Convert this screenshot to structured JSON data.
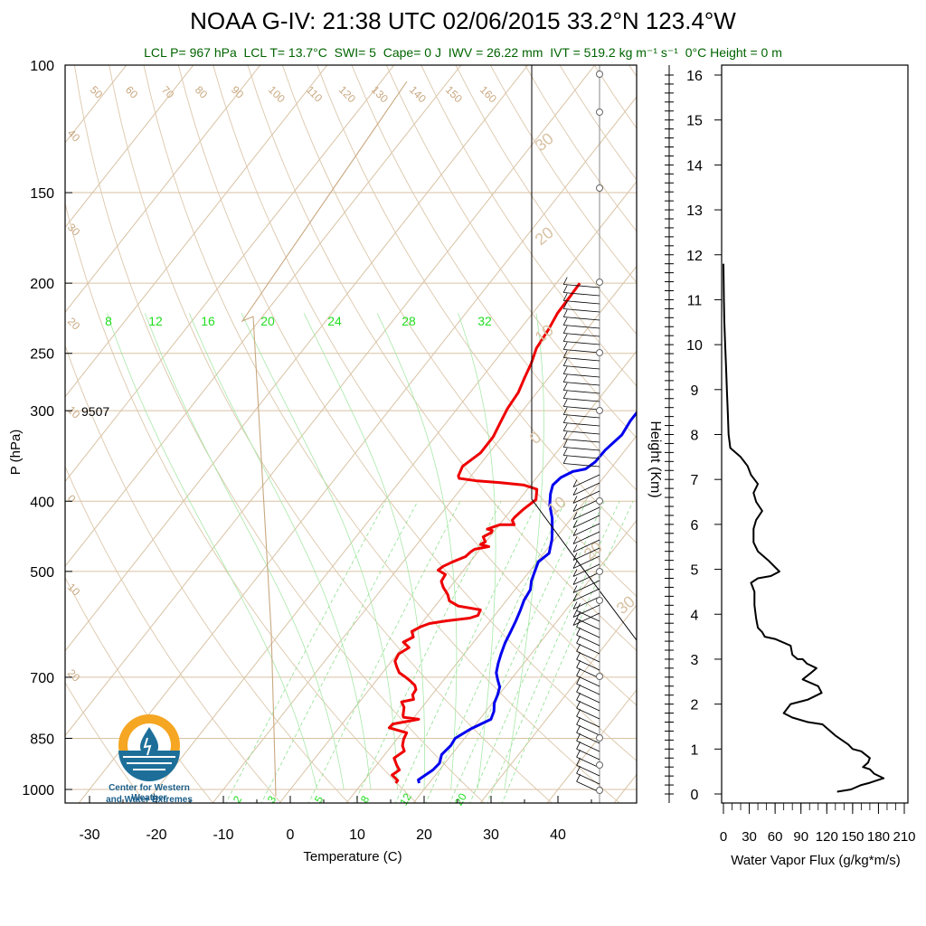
{
  "title": "NOAA G-IV: 21:38 UTC 02/06/2015  33.2°N 123.4°W",
  "subtitle": {
    "lcl_p": "LCL P= 967 hPa",
    "lcl_t": "LCL T= 13.7°C",
    "swi": "SWI= 5",
    "cape": "Cape= 0 J",
    "iwv": "IWV = 26.22 mm",
    "ivt": "IVT = 519.2 kg m⁻¹ s⁻¹",
    "zero_height": "0°C Height = 0 m"
  },
  "logo": {
    "line1": "Center for Western Weather",
    "line2": "and Water Extremes"
  },
  "chart_data": [
    {
      "type": "line",
      "name": "skewt-log-p",
      "xlabel": "Temperature (C)",
      "ylabel": "P (hPa)",
      "x_ticks": [
        -30,
        -20,
        -10,
        0,
        10,
        20,
        30,
        40
      ],
      "y_ticks": [
        100,
        150,
        200,
        250,
        300,
        400,
        500,
        700,
        850,
        1000
      ],
      "xlim": [
        -34,
        44
      ],
      "ylim": [
        1050,
        100
      ],
      "annotation": "9507",
      "mixing_ratio_labels": [
        "8",
        "12",
        "16",
        "20",
        "24",
        "28",
        "32"
      ],
      "mixing_ratio_low_labels": [
        "2",
        "3",
        "5",
        "8",
        "12",
        "20"
      ],
      "isotherm_labels_top": [
        "50",
        "60",
        "70",
        "80",
        "90",
        "100",
        "110",
        "120",
        "130",
        "140",
        "150",
        "160"
      ],
      "isotherm_labels_left": [
        "40",
        "30",
        "20",
        "10",
        "0",
        "10",
        "20"
      ],
      "wind_profile_labels": [
        "30",
        "20",
        "10",
        "0",
        "10",
        "20",
        "30"
      ],
      "series": [
        {
          "name": "temperature",
          "color": "#0000ee",
          "points": [
            [
              18.5,
              980
            ],
            [
              18,
              970
            ],
            [
              19,
              940
            ],
            [
              19.2,
              920
            ],
            [
              18.5,
              895
            ],
            [
              18.8,
              870
            ],
            [
              18.6,
              850
            ],
            [
              19.8,
              825
            ],
            [
              21.7,
              800
            ],
            [
              21.2,
              780
            ],
            [
              20.3,
              760
            ],
            [
              19.8,
              740
            ],
            [
              19.2,
              722
            ],
            [
              18,
              705
            ],
            [
              17,
              690
            ],
            [
              16.2,
              670
            ],
            [
              15.5,
              650
            ],
            [
              14.8,
              628
            ],
            [
              14.3,
              605
            ],
            [
              13.8,
              585
            ],
            [
              13.2,
              565
            ],
            [
              12.6,
              548
            ],
            [
              12.3,
              530
            ],
            [
              11.4,
              515
            ],
            [
              10.8,
              500
            ],
            [
              10.2,
              485
            ],
            [
              10.8,
              472
            ],
            [
              10.2,
              462
            ],
            [
              9.6,
              452
            ],
            [
              8.4,
              437
            ],
            [
              7.1,
              422
            ],
            [
              5.2,
              405
            ],
            [
              4,
              391
            ],
            [
              3.3,
              380
            ],
            [
              3.6,
              371
            ],
            [
              4.7,
              364
            ],
            [
              6.3,
              361
            ],
            [
              6.9,
              353
            ],
            [
              7,
              340
            ],
            [
              7.7,
              324
            ],
            [
              7.3,
              310
            ],
            [
              7.3,
              298
            ],
            [
              6.4,
              283
            ],
            [
              5.5,
              270
            ],
            [
              4.5,
              258
            ],
            [
              3.6,
              246
            ],
            [
              3.5,
              232
            ],
            [
              3.3,
              220
            ],
            [
              3.6,
              210
            ],
            [
              4,
              200
            ]
          ]
        },
        {
          "name": "dewpoint",
          "color": "#ee0000",
          "points": [
            [
              15,
              980
            ],
            [
              15,
              972
            ],
            [
              13.5,
              955
            ],
            [
              14,
              940
            ],
            [
              13,
              925
            ],
            [
              11.8,
              905
            ],
            [
              12.5,
              885
            ],
            [
              11.6,
              870
            ],
            [
              11,
              852
            ],
            [
              10.7,
              835
            ],
            [
              7.5,
              822
            ],
            [
              7.6,
              812
            ],
            [
              10.9,
              800
            ],
            [
              8.4,
              795
            ],
            [
              8.1,
              790
            ],
            [
              7.7,
              780
            ],
            [
              7.3,
              770
            ],
            [
              6.3,
              757
            ],
            [
              7.8,
              751
            ],
            [
              7.1,
              740
            ],
            [
              7,
              728
            ],
            [
              6.3,
              718
            ],
            [
              5.1,
              708
            ],
            [
              4,
              700
            ],
            [
              2.5,
              690
            ],
            [
              1.5,
              678
            ],
            [
              0.5,
              665
            ],
            [
              0.2,
              650
            ],
            [
              1,
              637
            ],
            [
              -0.5,
              626
            ],
            [
              0.4,
              616
            ],
            [
              -0.5,
              605
            ],
            [
              0.3,
              596
            ],
            [
              1.2,
              590
            ],
            [
              3.5,
              585
            ],
            [
              6.6,
              580
            ],
            [
              7.5,
              575
            ],
            [
              7.2,
              565
            ],
            [
              3.4,
              558
            ],
            [
              1.5,
              549
            ],
            [
              0.5,
              538
            ],
            [
              -1,
              526
            ],
            [
              -2,
              516
            ],
            [
              -2.2,
              505
            ],
            [
              -3.8,
              498
            ],
            [
              -3.5,
              492
            ],
            [
              -2.6,
              485
            ],
            [
              -1.3,
              477
            ],
            [
              -1.1,
              470
            ],
            [
              -0.8,
              466
            ],
            [
              1,
              462
            ],
            [
              -0.5,
              459
            ],
            [
              -0.1,
              455
            ],
            [
              -1,
              448
            ],
            [
              -0.3,
              442
            ],
            [
              -0.4,
              439
            ],
            [
              -1.3,
              437
            ],
            [
              0.1,
              431
            ],
            [
              2.2,
              431
            ],
            [
              1.4,
              425
            ],
            [
              1.4,
              421
            ],
            [
              1.6,
              415
            ],
            [
              1.8,
              410
            ],
            [
              2.5,
              398
            ],
            [
              1.4,
              385
            ],
            [
              -1,
              380
            ],
            [
              -5,
              377
            ],
            [
              -8.5,
              375
            ],
            [
              -11.5,
              372
            ],
            [
              -11.9,
              369
            ],
            [
              -12.4,
              358
            ],
            [
              -11.9,
              351
            ],
            [
              -11.3,
              343
            ],
            [
              -11.3,
              326
            ],
            [
              -11.9,
              312
            ],
            [
              -12.5,
              298
            ],
            [
              -12.8,
              283
            ],
            [
              -13.6,
              270
            ],
            [
              -14.3,
              258
            ],
            [
              -15.3,
              246
            ],
            [
              -15.7,
              232
            ],
            [
              -16.3,
              220
            ],
            [
              -16.4,
              208
            ],
            [
              -16.5,
              200
            ]
          ]
        }
      ]
    },
    {
      "type": "line",
      "name": "water-vapor-flux-profile",
      "xlabel": "Water Vapor Flux (g/kg*m/s)",
      "ylabel": "Height (Km)",
      "x_ticks": [
        "0",
        "30",
        "60",
        "90",
        "120",
        "150",
        "180",
        "210"
      ],
      "y_ticks": [
        "0",
        "1",
        "2",
        "3",
        "4",
        "5",
        "6",
        "7",
        "8",
        "9",
        "10",
        "11",
        "12",
        "13",
        "14",
        "15",
        "16"
      ],
      "xlim": [
        0,
        210
      ],
      "ylim": [
        -0.2,
        16.4
      ],
      "series": [
        {
          "name": "flux",
          "color": "#000000",
          "points": [
            [
              132,
              0.05
            ],
            [
              148,
              0.1
            ],
            [
              160,
              0.2
            ],
            [
              170,
              0.25
            ],
            [
              178,
              0.3
            ],
            [
              186,
              0.35
            ],
            [
              175,
              0.45
            ],
            [
              170,
              0.55
            ],
            [
              162,
              0.6
            ],
            [
              168,
              0.7
            ],
            [
              170,
              0.8
            ],
            [
              160,
              0.95
            ],
            [
              150,
              1
            ],
            [
              145,
              1.1
            ],
            [
              130,
              1.3
            ],
            [
              115,
              1.55
            ],
            [
              98,
              1.6
            ],
            [
              80,
              1.7
            ],
            [
              70,
              1.8
            ],
            [
              78,
              2
            ],
            [
              98,
              2.1
            ],
            [
              114,
              2.25
            ],
            [
              110,
              2.4
            ],
            [
              92,
              2.55
            ],
            [
              102,
              2.7
            ],
            [
              108,
              2.8
            ],
            [
              97,
              2.9
            ],
            [
              92,
              3
            ],
            [
              86,
              3
            ],
            [
              80,
              3.1
            ],
            [
              78,
              3.3
            ],
            [
              60,
              3.45
            ],
            [
              48,
              3.5
            ],
            [
              45,
              3.6
            ],
            [
              40,
              3.7
            ],
            [
              38,
              3.9
            ],
            [
              36,
              4.2
            ],
            [
              36,
              4.5
            ],
            [
              32,
              4.7
            ],
            [
              40,
              4.8
            ],
            [
              55,
              4.85
            ],
            [
              65,
              4.95
            ],
            [
              52,
              5.2
            ],
            [
              40,
              5.4
            ],
            [
              35,
              5.6
            ],
            [
              35,
              5.9
            ],
            [
              38,
              6.1
            ],
            [
              45,
              6.3
            ],
            [
              38,
              6.5
            ],
            [
              35,
              6.7
            ],
            [
              40,
              6.9
            ],
            [
              32,
              7.1
            ],
            [
              28,
              7.3
            ],
            [
              20,
              7.5
            ],
            [
              8,
              7.7
            ],
            [
              6,
              8
            ],
            [
              5,
              8.5
            ],
            [
              4,
              9
            ],
            [
              3,
              9.5
            ],
            [
              2,
              10
            ],
            [
              1,
              10.5
            ],
            [
              0.5,
              11
            ],
            [
              0,
              11.8
            ]
          ]
        }
      ]
    }
  ]
}
